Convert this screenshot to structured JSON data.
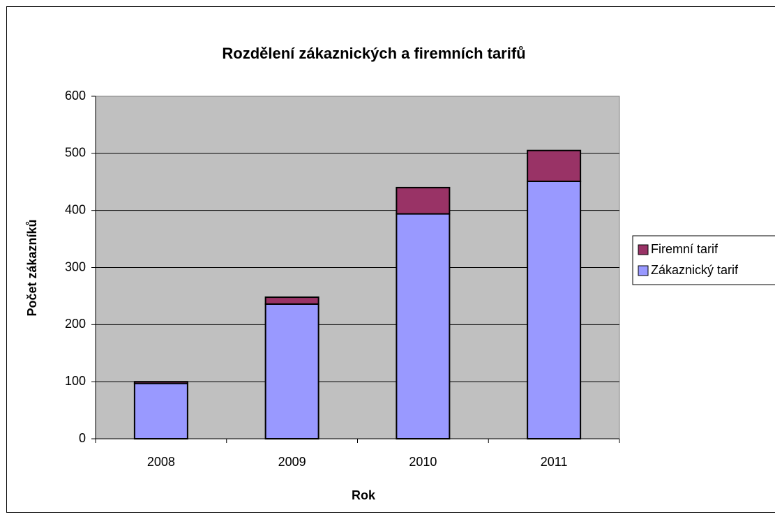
{
  "chart_data": {
    "type": "stacked_bar",
    "title": "Rozdělení zákaznických a firemních tarifů",
    "x_label": "Rok",
    "y_label": "Počet zákazníků",
    "categories": [
      "2008",
      "2009",
      "2010",
      "2011"
    ],
    "series": [
      {
        "name": "Zákaznický tarif",
        "color": "#9999ff",
        "values": [
          97,
          236,
          394,
          451
        ]
      },
      {
        "name": "Firemní tarif",
        "color": "#993366",
        "values": [
          3,
          12,
          46,
          54
        ]
      }
    ],
    "ylim": [
      0,
      600
    ],
    "yticks": [
      0,
      100,
      200,
      300,
      400,
      500,
      600
    ],
    "grid": true,
    "legend": "right"
  }
}
